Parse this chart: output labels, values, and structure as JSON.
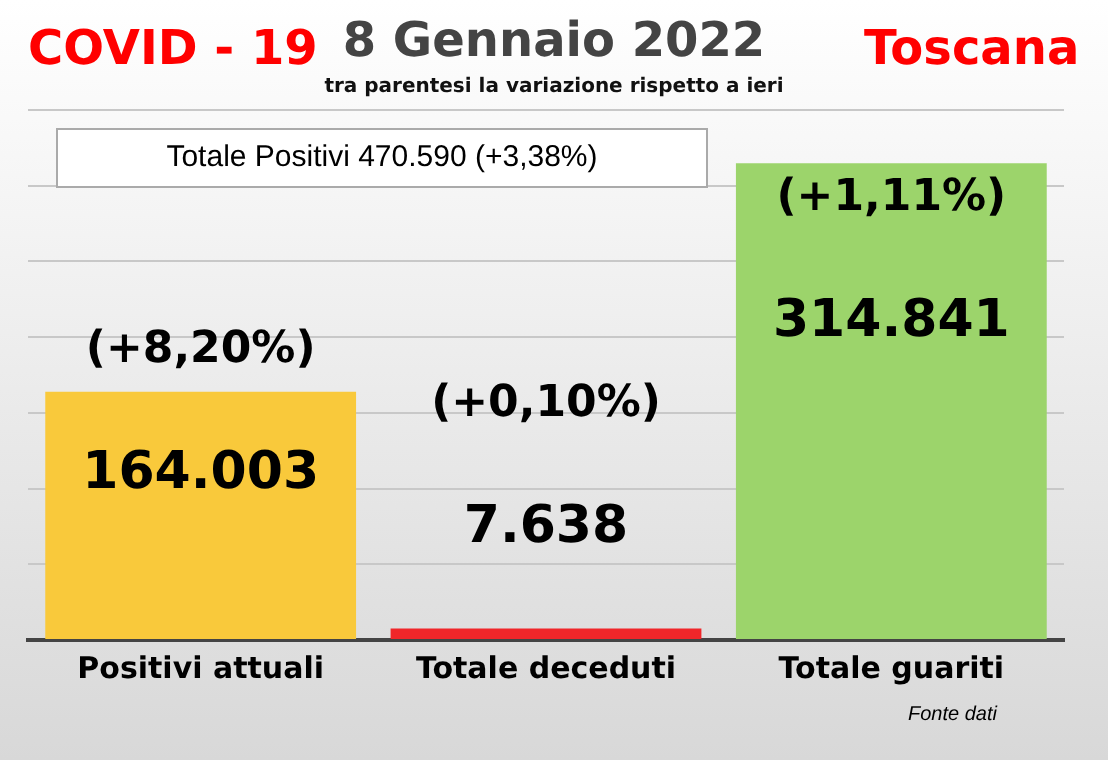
{
  "chart_data": {
    "type": "bar",
    "title": "8 Gennaio 2022",
    "subtitle": "tra parentesi la variazione rispetto a ieri",
    "categories": [
      "Positivi attuali",
      "Totale deceduti",
      "Totale guariti"
    ],
    "values": [
      164003,
      7638,
      314841
    ],
    "colors": [
      "#f9c93b",
      "#f0262a",
      "#9cd46b"
    ],
    "value_labels": [
      "164.003",
      "7.638",
      "314.841"
    ],
    "tick_labels": "x",
    "grid": "y",
    "legend": false,
    "annotations": [
      "COVID - 19",
      "Toscana",
      "Totale Positivi 470.590 (+3,38%)",
      "(+8,20%)",
      "(+0,10%)",
      "(+1,11%)",
      "Fonte dati"
    ]
  }
}
